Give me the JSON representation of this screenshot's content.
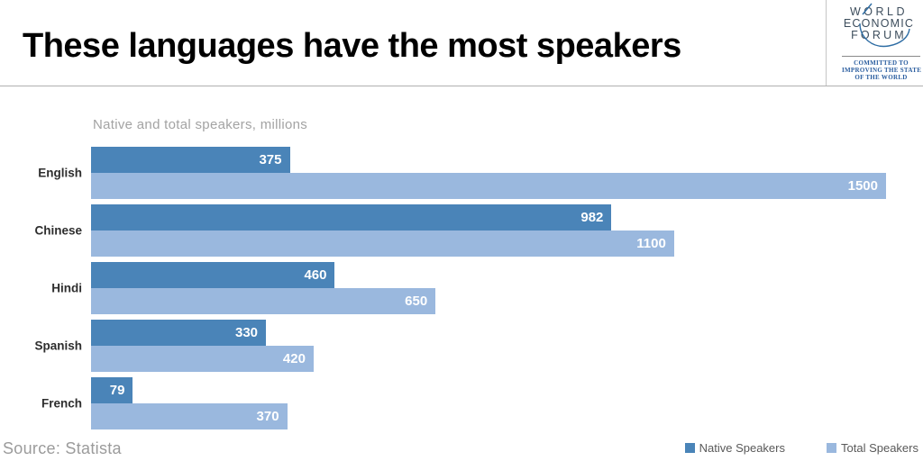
{
  "header": {
    "title": "These languages have the most speakers",
    "logo": {
      "lines": [
        "WORLD",
        "ECONOMIC",
        "FORUM"
      ],
      "tagline": [
        "COMMITTED TO",
        "IMPROVING THE STATE",
        "OF THE WORLD"
      ],
      "text_color": "#3d4d5c",
      "tagline_color": "#2a5d9f",
      "swoosh_color": "#2e6da4"
    }
  },
  "chart_data": {
    "type": "bar",
    "orientation": "horizontal",
    "title": "Native and total speakers, millions",
    "categories": [
      "English",
      "Chinese",
      "Hindi",
      "Spanish",
      "French"
    ],
    "series": [
      {
        "name": "Native Speakers",
        "color": "#4a84b8",
        "values": [
          375,
          982,
          460,
          330,
          79
        ]
      },
      {
        "name": "Total Speakers",
        "color": "#9ab8de",
        "values": [
          1500,
          1100,
          650,
          420,
          370
        ]
      }
    ],
    "xlim": [
      0,
      1500
    ],
    "value_labels": "inside-end",
    "value_label_color": "#ffffff",
    "legend_position": "bottom-right",
    "grid": false
  },
  "footer": {
    "source": "Source: Statista"
  }
}
